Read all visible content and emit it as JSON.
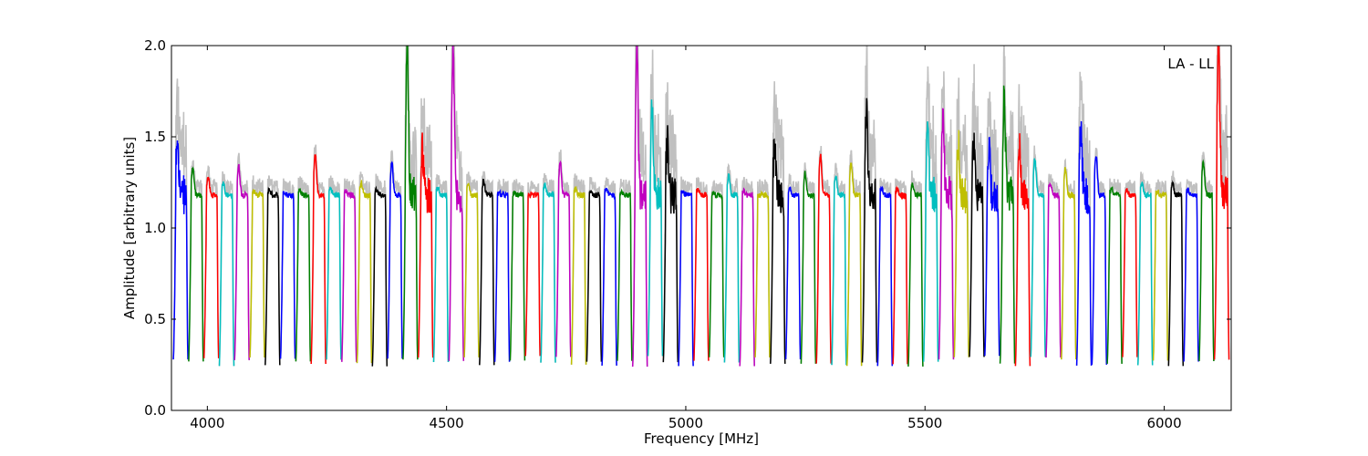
{
  "chart_data": {
    "type": "line",
    "title": "",
    "annotation": "LA - LL",
    "xlabel": "Frequency [MHz]",
    "ylabel": "Amplitude [arbitrary units]",
    "xlim": [
      3925,
      6140
    ],
    "ylim": [
      0.0,
      2.0
    ],
    "xticks": [
      4000,
      4500,
      5000,
      5500,
      6000
    ],
    "yticks": [
      0.0,
      0.5,
      1.0,
      1.5,
      2.0
    ],
    "xtick_labels": [
      "4000",
      "4500",
      "5000",
      "5500",
      "6000"
    ],
    "ytick_labels": [
      "0.0",
      "0.5",
      "1.0",
      "1.5",
      "2.0"
    ],
    "grid": false,
    "legend": "none",
    "color_cycle": [
      "#0000ff",
      "#008000",
      "#ff0000",
      "#00bfbf",
      "#bf00bf",
      "#bfbf00",
      "#000000"
    ],
    "unflagged_color": "#c0c0c0",
    "spw_width_mhz": 32,
    "series": [
      {
        "x0": 3929,
        "peak": 1.51,
        "color": "#0000ff"
      },
      {
        "x0": 3961,
        "peak": 1.33,
        "color": "#008000"
      },
      {
        "x0": 3993,
        "peak": 1.28,
        "color": "#ff0000"
      },
      {
        "x0": 4025,
        "peak": 1.25,
        "color": "#00bfbf"
      },
      {
        "x0": 4057,
        "peak": 1.34,
        "color": "#bf00bf"
      },
      {
        "x0": 4089,
        "peak": 1.2,
        "color": "#bfbf00"
      },
      {
        "x0": 4121,
        "peak": 1.21,
        "color": "#000000"
      },
      {
        "x0": 4153,
        "peak": 1.2,
        "color": "#0000ff"
      },
      {
        "x0": 4185,
        "peak": 1.21,
        "color": "#008000"
      },
      {
        "x0": 4217,
        "peak": 1.4,
        "color": "#ff0000"
      },
      {
        "x0": 4249,
        "peak": 1.22,
        "color": "#00bfbf"
      },
      {
        "x0": 4281,
        "peak": 1.2,
        "color": "#bf00bf"
      },
      {
        "x0": 4313,
        "peak": 1.25,
        "color": "#bfbf00"
      },
      {
        "x0": 4345,
        "peak": 1.21,
        "color": "#000000"
      },
      {
        "x0": 4377,
        "peak": 1.36,
        "color": "#0000ff"
      },
      {
        "x0": 4409,
        "peak": 2.0,
        "color": "#008000"
      },
      {
        "x0": 4441,
        "peak": 1.44,
        "color": "#ff0000"
      },
      {
        "x0": 4473,
        "peak": 1.22,
        "color": "#00bfbf"
      },
      {
        "x0": 4505,
        "peak": 2.0,
        "color": "#bf00bf"
      },
      {
        "x0": 4537,
        "peak": 1.25,
        "color": "#bfbf00"
      },
      {
        "x0": 4569,
        "peak": 1.26,
        "color": "#000000"
      },
      {
        "x0": 4601,
        "peak": 1.19,
        "color": "#0000ff"
      },
      {
        "x0": 4633,
        "peak": 1.19,
        "color": "#008000"
      },
      {
        "x0": 4665,
        "peak": 1.17,
        "color": "#ff0000"
      },
      {
        "x0": 4697,
        "peak": 1.24,
        "color": "#00bfbf"
      },
      {
        "x0": 4729,
        "peak": 1.36,
        "color": "#bf00bf"
      },
      {
        "x0": 4761,
        "peak": 1.21,
        "color": "#bfbf00"
      },
      {
        "x0": 4793,
        "peak": 1.2,
        "color": "#000000"
      },
      {
        "x0": 4825,
        "peak": 1.21,
        "color": "#0000ff"
      },
      {
        "x0": 4857,
        "peak": 1.19,
        "color": "#008000"
      },
      {
        "x0": 4889,
        "peak": 2.0,
        "color": "#bf00bf"
      },
      {
        "x0": 4921,
        "peak": 1.62,
        "color": "#00bfbf"
      },
      {
        "x0": 4953,
        "peak": 1.46,
        "color": "#000000"
      },
      {
        "x0": 4985,
        "peak": 1.2,
        "color": "#0000ff"
      },
      {
        "x0": 5017,
        "peak": 1.21,
        "color": "#ff0000"
      },
      {
        "x0": 5049,
        "peak": 1.19,
        "color": "#008000"
      },
      {
        "x0": 5081,
        "peak": 1.29,
        "color": "#00bfbf"
      },
      {
        "x0": 5113,
        "peak": 1.2,
        "color": "#bf00bf"
      },
      {
        "x0": 5145,
        "peak": 1.18,
        "color": "#bfbf00"
      },
      {
        "x0": 5177,
        "peak": 1.45,
        "color": "#000000"
      },
      {
        "x0": 5209,
        "peak": 1.22,
        "color": "#0000ff"
      },
      {
        "x0": 5241,
        "peak": 1.3,
        "color": "#008000"
      },
      {
        "x0": 5273,
        "peak": 1.4,
        "color": "#ff0000"
      },
      {
        "x0": 5305,
        "peak": 1.28,
        "color": "#00bfbf"
      },
      {
        "x0": 5337,
        "peak": 1.36,
        "color": "#bfbf00"
      },
      {
        "x0": 5369,
        "peak": 1.64,
        "color": "#000000"
      },
      {
        "x0": 5401,
        "peak": 1.22,
        "color": "#0000ff"
      },
      {
        "x0": 5433,
        "peak": 1.21,
        "color": "#ff0000"
      },
      {
        "x0": 5465,
        "peak": 1.24,
        "color": "#008000"
      },
      {
        "x0": 5497,
        "peak": 1.55,
        "color": "#00bfbf"
      },
      {
        "x0": 5529,
        "peak": 1.62,
        "color": "#bf00bf"
      },
      {
        "x0": 5561,
        "peak": 1.48,
        "color": "#bfbf00"
      },
      {
        "x0": 5593,
        "peak": 1.45,
        "color": "#000000"
      },
      {
        "x0": 5625,
        "peak": 1.42,
        "color": "#0000ff"
      },
      {
        "x0": 5657,
        "peak": 1.71,
        "color": "#008000"
      },
      {
        "x0": 5689,
        "peak": 1.44,
        "color": "#ff0000"
      },
      {
        "x0": 5721,
        "peak": 1.38,
        "color": "#00bfbf"
      },
      {
        "x0": 5753,
        "peak": 1.25,
        "color": "#bf00bf"
      },
      {
        "x0": 5785,
        "peak": 1.33,
        "color": "#bfbf00"
      },
      {
        "x0": 5817,
        "peak": 1.55,
        "color": "#0000ff"
      },
      {
        "x0": 5849,
        "peak": 1.4,
        "color": "#0000ff"
      },
      {
        "x0": 5881,
        "peak": 1.22,
        "color": "#008000"
      },
      {
        "x0": 5913,
        "peak": 1.21,
        "color": "#ff0000"
      },
      {
        "x0": 5945,
        "peak": 1.24,
        "color": "#00bfbf"
      },
      {
        "x0": 5977,
        "peak": 1.2,
        "color": "#bfbf00"
      },
      {
        "x0": 6009,
        "peak": 1.24,
        "color": "#000000"
      },
      {
        "x0": 6041,
        "peak": 1.21,
        "color": "#0000ff"
      },
      {
        "x0": 6073,
        "peak": 1.37,
        "color": "#008000"
      },
      {
        "x0": 6105,
        "peak": 2.0,
        "color": "#ff0000"
      }
    ]
  }
}
